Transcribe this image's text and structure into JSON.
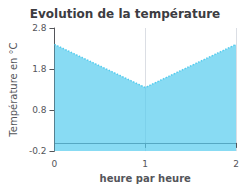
{
  "chart_data": {
    "type": "area",
    "title": "Evolution de la température",
    "xlabel": "heure par heure",
    "ylabel": "Température en °C",
    "x": [
      0,
      1,
      2
    ],
    "values": [
      2.4,
      1.35,
      2.4
    ],
    "color": "#55ccee",
    "line_style": "dotted",
    "xlim": [
      0,
      2
    ],
    "ylim": [
      -0.2,
      2.8
    ],
    "xticks": [
      0,
      1,
      2
    ],
    "yticks": [
      -0.2,
      0.8,
      1.8,
      2.8
    ],
    "grid": "x"
  }
}
